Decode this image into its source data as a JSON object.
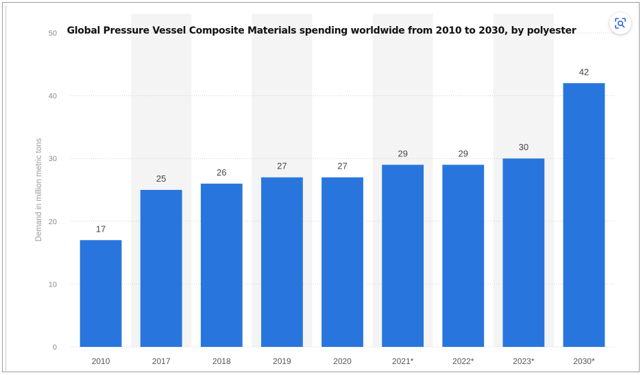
{
  "chart_data": {
    "type": "bar",
    "title": "Global Pressure Vessel Composite Materials spending worldwide from 2010 to 2030, by polyester",
    "ylabel": "Demand in million metric tons",
    "xlabel": "",
    "categories": [
      "2010",
      "2017",
      "2018",
      "2019",
      "2020",
      "2021*",
      "2022*",
      "2023*",
      "2030*"
    ],
    "values": [
      17,
      25,
      26,
      27,
      27,
      29,
      29,
      30,
      42
    ],
    "ylim": [
      0,
      50
    ],
    "yticks": [
      0,
      10,
      20,
      30,
      40,
      50
    ],
    "grid": true,
    "data_labels": true,
    "colors": {
      "bar": "#2876dd",
      "alt_band": "#f4f4f4",
      "grid": "#cfcfcf",
      "tick_text": "#555555",
      "value_text": "#444444"
    }
  },
  "ui": {
    "lens_button_icon": "visual-search-icon"
  }
}
